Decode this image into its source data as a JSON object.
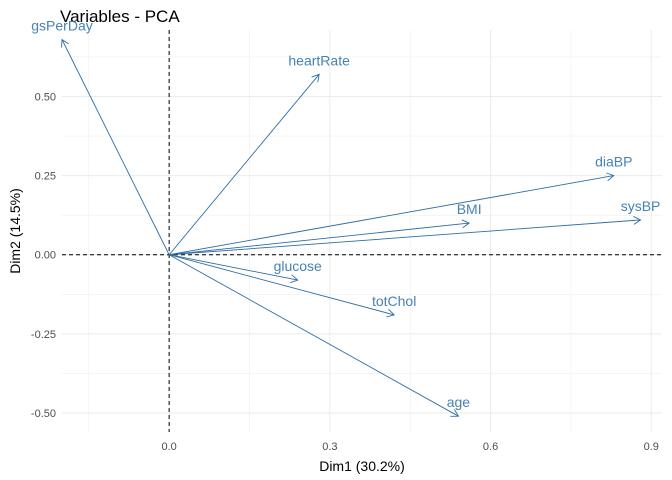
{
  "chart_data": {
    "type": "scatter",
    "subtype": "pca-variable-correlation-arrows",
    "title": "Variables - PCA",
    "xlabel": "Dim1 (30.2%)",
    "ylabel": "Dim2 (14.5%)",
    "xlim": [
      -0.2,
      0.92
    ],
    "ylim": [
      -0.56,
      0.71
    ],
    "x_ticks": [
      0.0,
      0.3,
      0.6,
      0.9
    ],
    "x_tick_labels": [
      "0.0",
      "0.3",
      "0.6",
      "0.9"
    ],
    "y_ticks": [
      -0.5,
      -0.25,
      0.0,
      0.25,
      0.5
    ],
    "y_tick_labels": [
      "-0.50",
      "-0.25",
      "0.00",
      "0.25",
      "0.50"
    ],
    "grid": true,
    "reference_lines": {
      "x": 0,
      "y": 0,
      "style": "dashed"
    },
    "arrow_color": "#2E6DA4",
    "label_color": "#4682B4",
    "gridline_color": "#EBEBEB",
    "variables": [
      {
        "name": "gsPerDay",
        "x": -0.2,
        "y": 0.68
      },
      {
        "name": "heartRate",
        "x": 0.28,
        "y": 0.57
      },
      {
        "name": "diaBP",
        "x": 0.83,
        "y": 0.25
      },
      {
        "name": "BMI",
        "x": 0.56,
        "y": 0.1
      },
      {
        "name": "sysBP",
        "x": 0.88,
        "y": 0.11
      },
      {
        "name": "glucose",
        "x": 0.24,
        "y": -0.08
      },
      {
        "name": "totChol",
        "x": 0.42,
        "y": -0.19
      },
      {
        "name": "age",
        "x": 0.54,
        "y": -0.51
      }
    ]
  }
}
